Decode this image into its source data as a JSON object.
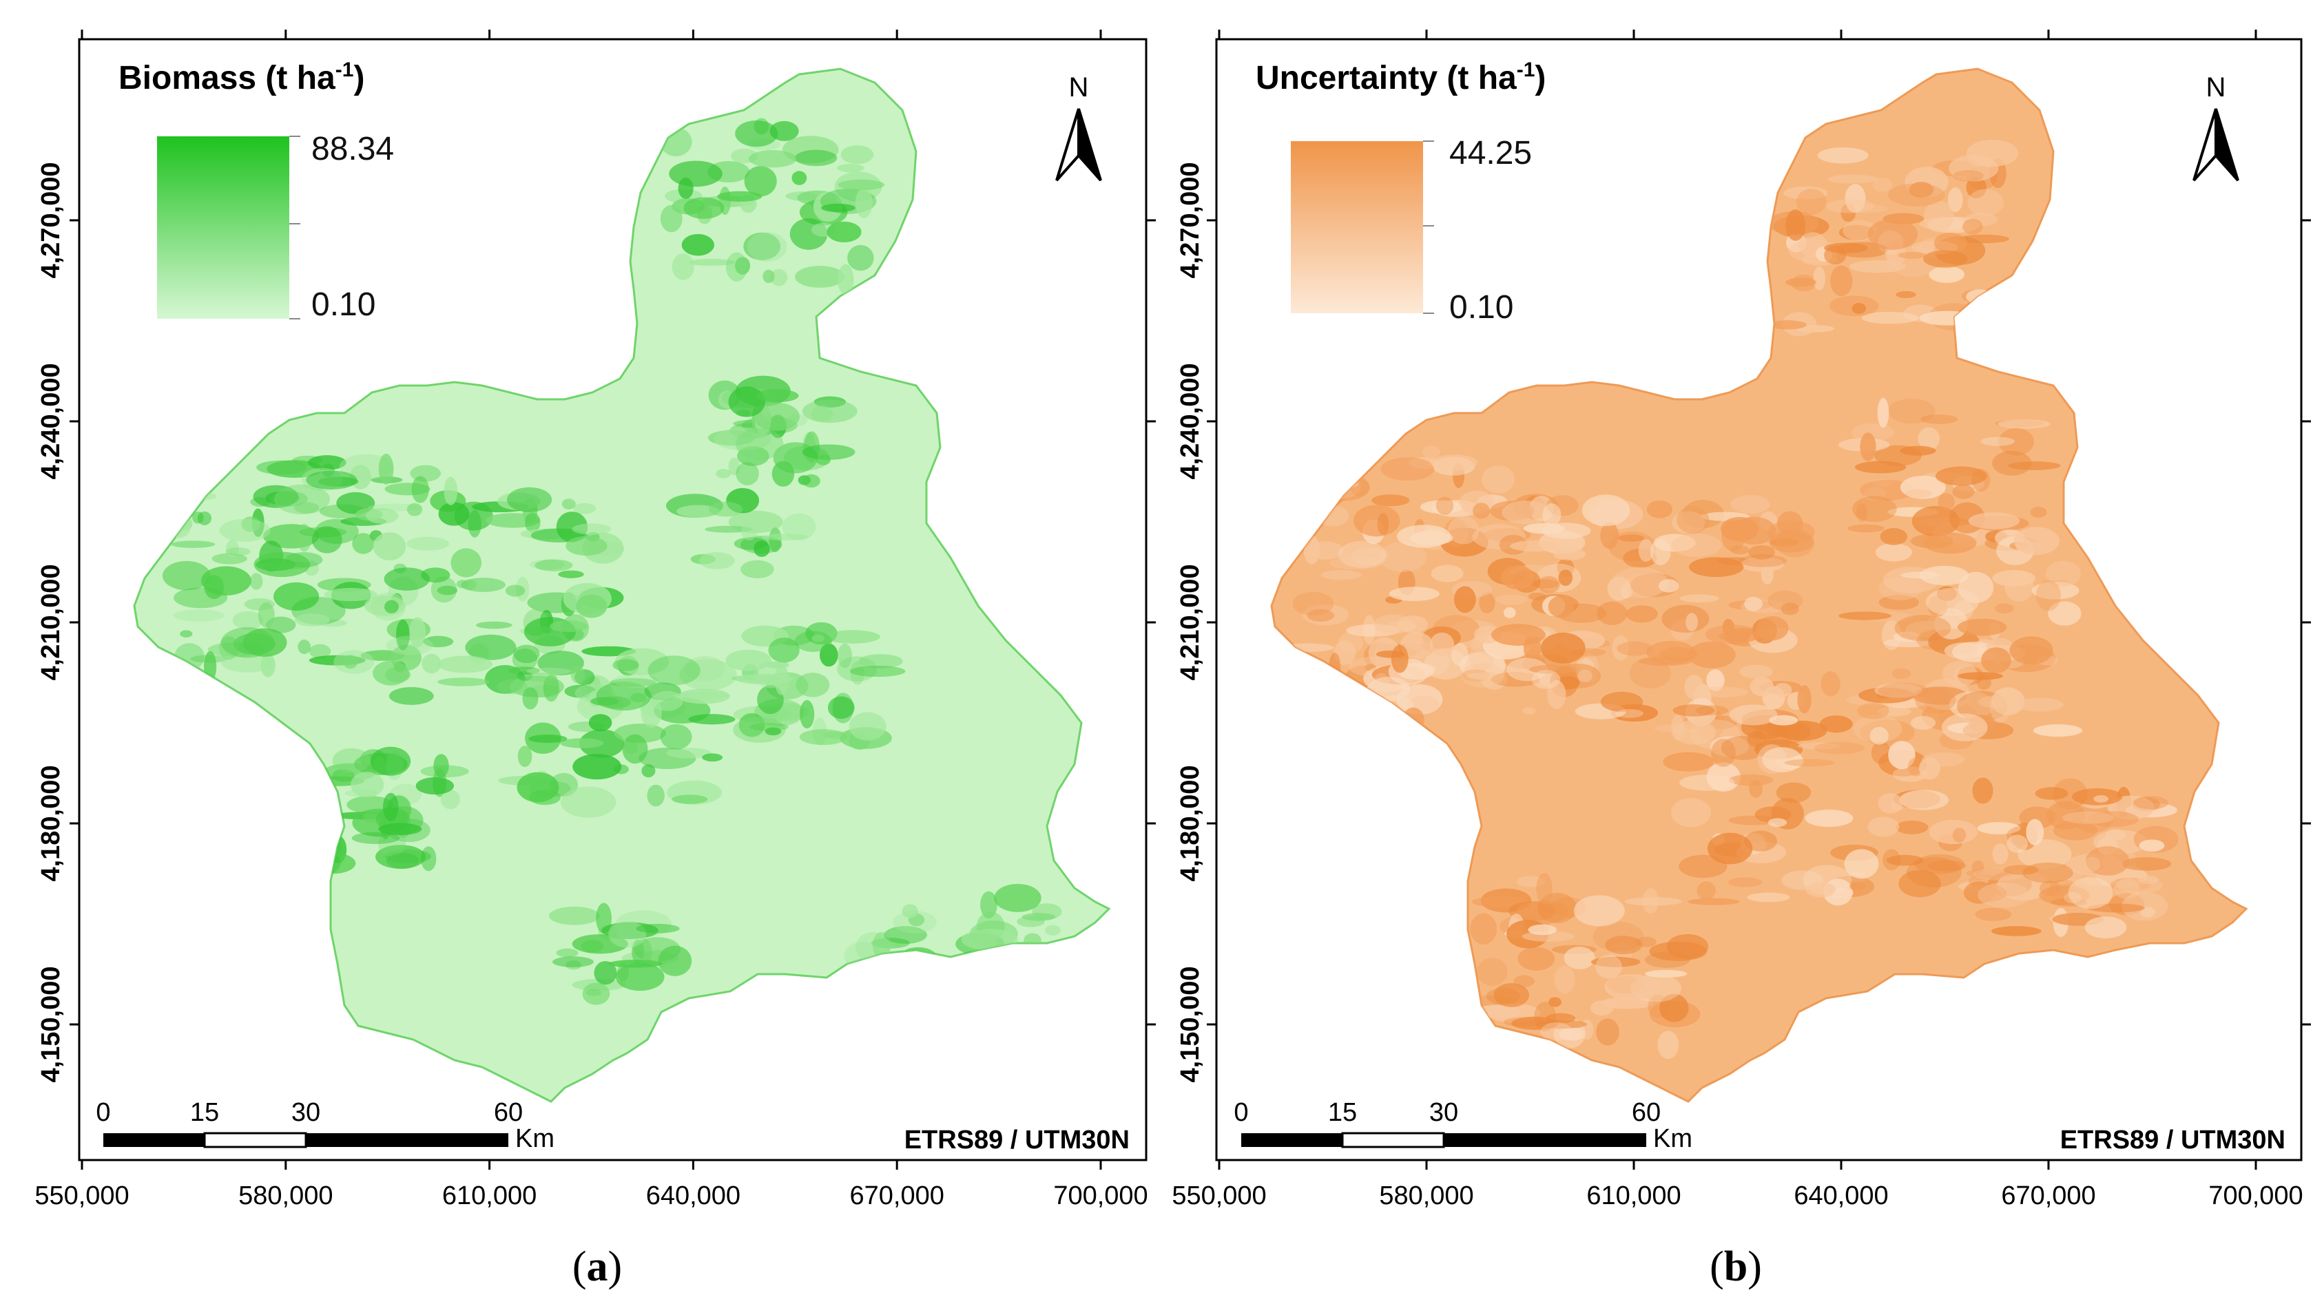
{
  "figure": {
    "panels": [
      {
        "id": "a",
        "caption_letter": "a",
        "legend": {
          "title": "Biomass (t ha",
          "title_sup": "-1",
          "title_close": ")",
          "max": "88.34",
          "min": "0.10",
          "color_high": "#1fc21f",
          "color_low": "#d6f7d3"
        },
        "fill_base": "#c9f3c3",
        "fill_stroke": "#6fd46b",
        "patch_colors": [
          "#33c433",
          "#4fcf4a",
          "#7adc74",
          "#a3e89d"
        ],
        "north_label": "N",
        "scale_labels": [
          "0",
          "15",
          "30",
          "60"
        ],
        "scale_unit": "Km",
        "crs": "ETRS89 / UTM30N"
      },
      {
        "id": "b",
        "caption_letter": "b",
        "legend": {
          "title": "Uncertainty (t ha",
          "title_sup": "-1",
          "title_close": ")",
          "max": "44.25",
          "min": "0.10",
          "color_high": "#f0954a",
          "color_low": "#fde9d6"
        },
        "fill_base": "#f6b77f",
        "fill_stroke": "#ee9a55",
        "patch_colors": [
          "#ec8a3c",
          "#f19c58",
          "#f8c79d",
          "#fbdcbf"
        ],
        "north_label": "N",
        "scale_labels": [
          "0",
          "15",
          "30",
          "60"
        ],
        "scale_unit": "Km",
        "crs": "ETRS89 / UTM30N"
      }
    ],
    "x_ticks": [
      "550,000",
      "580,000",
      "610,000",
      "640,000",
      "670,000",
      "700,000"
    ],
    "y_ticks": [
      "4,270,000",
      "4,240,000",
      "4,210,000",
      "4,180,000",
      "4,150,000"
    ]
  }
}
